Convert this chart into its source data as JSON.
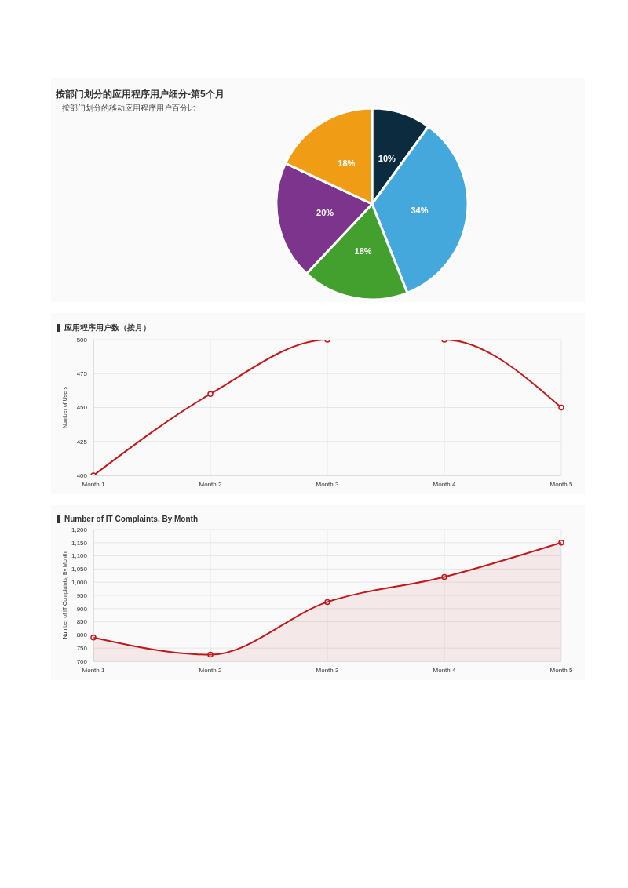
{
  "chart_data": [
    {
      "type": "pie",
      "title": "按部门划分的应用程序用户细分-第5个月",
      "subtitle": "按部门划分的移动应用程序用户百分比",
      "categories": [
        null,
        null,
        null,
        null,
        null
      ],
      "values": [
        10,
        34,
        18,
        20,
        18
      ],
      "colors": [
        "#0d2b3e",
        "#45a8dc",
        "#43a02f",
        "#7d348c",
        "#f09c14"
      ],
      "value_labels": [
        "10%",
        "34%",
        "18%",
        "20%",
        "18%"
      ]
    },
    {
      "type": "line",
      "title": "应用程序用户数（按月）",
      "ylabel": "Number of Users",
      "categories": [
        "Month 1",
        "Month 2",
        "Month 3",
        "Month 4",
        "Month 5"
      ],
      "series": [
        {
          "color": "#c0181c",
          "values": [
            400,
            460,
            500,
            500,
            450
          ]
        }
      ],
      "ylim": [
        400,
        500
      ],
      "yticks": [
        400,
        425,
        450,
        475,
        500
      ],
      "grid": true,
      "marker": "circle"
    },
    {
      "type": "area",
      "title": "Number of IT Complaints, By Month",
      "ylabel": "Number of IT Complaints, By Month",
      "categories": [
        "Month 1",
        "Month 2",
        "Month 3",
        "Month 4",
        "Month 5"
      ],
      "series": [
        {
          "color": "#c0181c",
          "values": [
            790,
            725,
            925,
            1020,
            1150
          ]
        }
      ],
      "ylim": [
        700,
        1200
      ],
      "yticks": [
        700,
        750,
        800,
        850,
        900,
        950,
        {
          "value": 1000,
          "label": "1,000"
        },
        {
          "value": 1050,
          "label": "1,050"
        },
        {
          "value": 1100,
          "label": "1,100"
        },
        {
          "value": 1150,
          "label": "1,150"
        },
        {
          "value": 1200,
          "label": "1,200"
        }
      ],
      "grid": true,
      "marker": "circle"
    }
  ]
}
